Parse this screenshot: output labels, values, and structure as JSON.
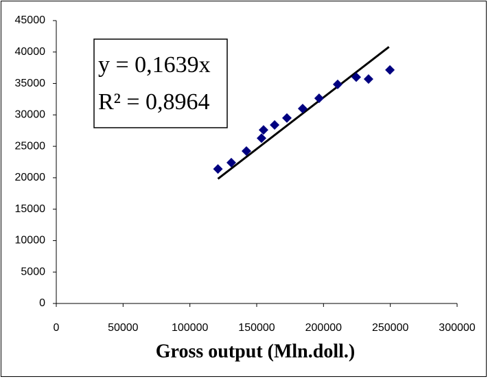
{
  "chart_data": {
    "type": "scatter",
    "x_label": "Gross output (Mln.doll.)",
    "annotation": [
      "y = 0,1639x",
      "R² = 0,8964"
    ],
    "x": [
      121000,
      131000,
      142300,
      153600,
      155100,
      163400,
      172600,
      184400,
      196700,
      210600,
      224500,
      233700,
      249700
    ],
    "series": [
      {
        "color": "#000080",
        "values": [
          21400,
          22400,
          24250,
          26300,
          27600,
          28400,
          29500,
          31000,
          32650,
          34850,
          36000,
          35700,
          37150
        ]
      }
    ],
    "trendline": {
      "slope": 0.1639,
      "x": [
        121000,
        249000
      ],
      "color": "#000000"
    },
    "xlim": [
      0,
      300000
    ],
    "xticks": [
      0,
      50000,
      100000,
      150000,
      200000,
      250000,
      300000
    ],
    "ylim": [
      0,
      45000
    ],
    "yticks": [
      0,
      5000,
      10000,
      15000,
      20000,
      25000,
      30000,
      35000,
      40000,
      45000
    ],
    "grid": false
  }
}
